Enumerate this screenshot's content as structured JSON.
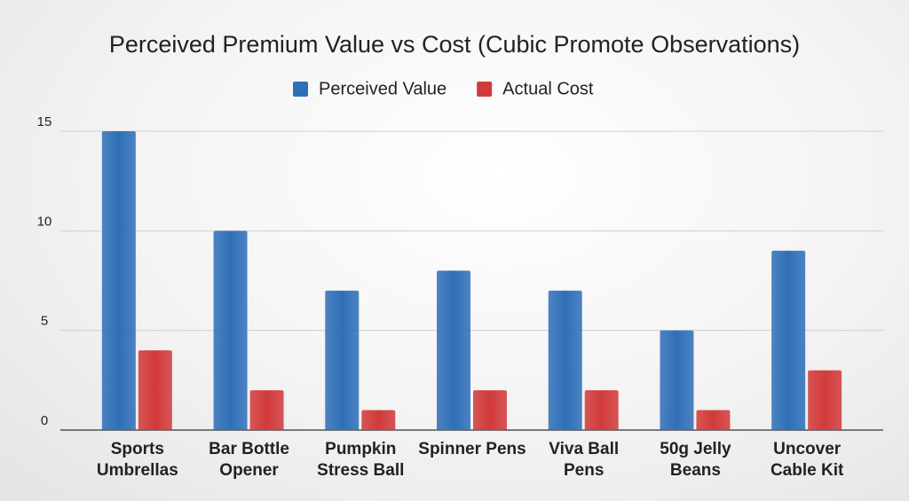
{
  "chart_data": {
    "type": "bar",
    "title": "Perceived Premium Value vs Cost (Cubic Promote Observations)",
    "categories": [
      "Sports Umbrellas",
      "Bar Bottle Opener",
      "Pumpkin Stress Ball",
      "Spinner Pens",
      "Viva Ball Pens",
      "50g Jelly Beans",
      "Uncover Cable Kit"
    ],
    "series": [
      {
        "name": "Perceived Value",
        "color": "#2f6fb8",
        "values": [
          15,
          10,
          7,
          8,
          7,
          5,
          9
        ]
      },
      {
        "name": "Actual Cost",
        "color": "#d23a3a",
        "values": [
          4,
          2,
          1,
          2,
          2,
          1,
          3
        ]
      }
    ],
    "ylim": [
      0,
      15
    ],
    "yticks": [
      0,
      5,
      10,
      15
    ],
    "grid": true,
    "legend": "top"
  }
}
